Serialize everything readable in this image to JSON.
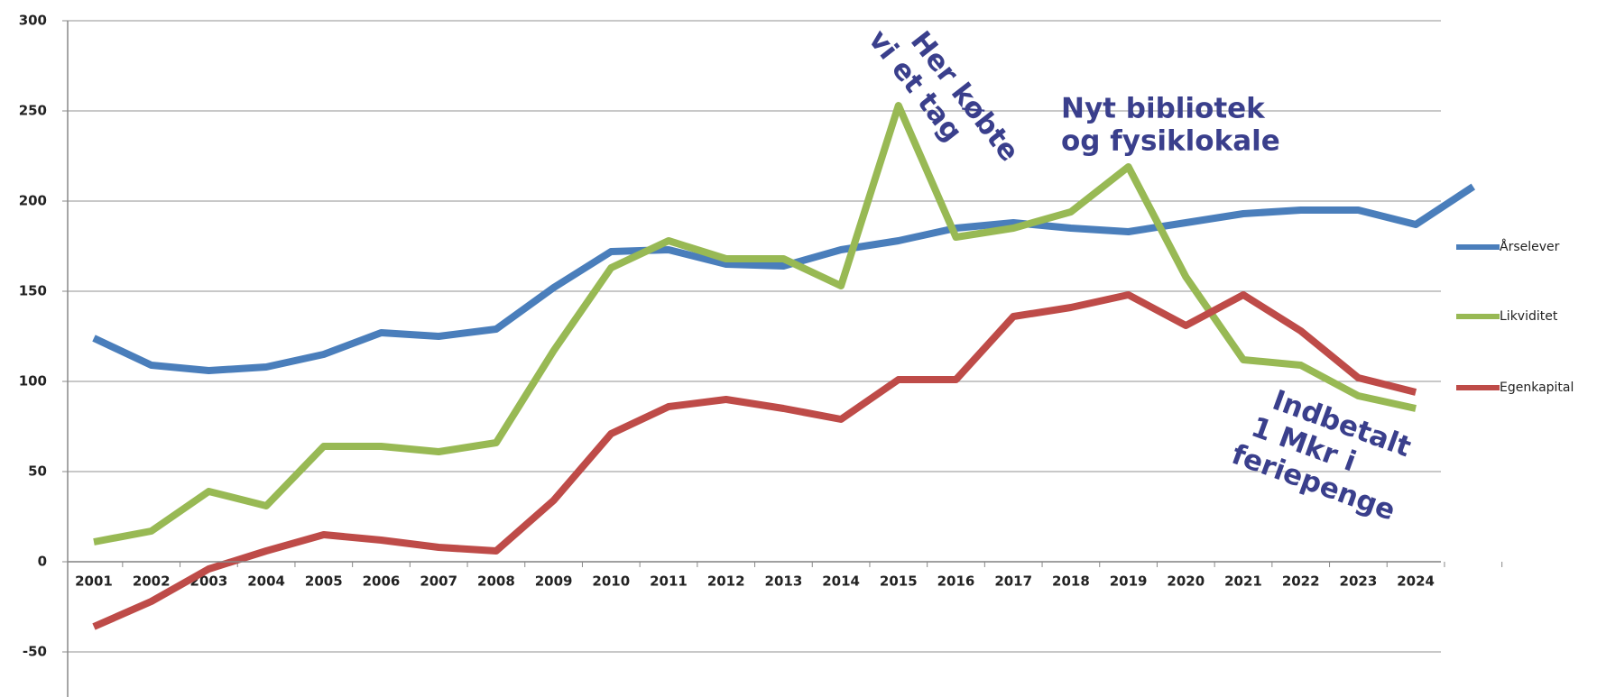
{
  "chart_data": {
    "type": "line",
    "categories": [
      "2001",
      "2002",
      "2003",
      "2004",
      "2005",
      "2006",
      "2007",
      "2008",
      "2009",
      "2010",
      "2011",
      "2012",
      "2013",
      "2014",
      "2015",
      "2016",
      "2017",
      "2018",
      "2019",
      "2020",
      "2021",
      "2022",
      "2023",
      "2024",
      null
    ],
    "series": [
      {
        "name": "Årselever",
        "color": "#4a7ebb",
        "values": [
          124,
          109,
          106,
          108,
          115,
          127,
          125,
          129,
          152,
          172,
          173,
          165,
          164,
          173,
          178,
          185,
          188,
          185,
          183,
          188,
          193,
          195,
          195,
          187,
          208
        ]
      },
      {
        "name": "Likviditet",
        "color": "#98b954",
        "values": [
          11,
          17,
          39,
          31,
          64,
          64,
          61,
          66,
          117,
          163,
          178,
          168,
          168,
          153,
          253,
          180,
          185,
          194,
          219,
          158,
          112,
          109,
          92,
          85,
          null
        ]
      },
      {
        "name": "Egenkapital",
        "color": "#be4b48",
        "values": [
          -36,
          -22,
          -4,
          6,
          15,
          12,
          8,
          6,
          34,
          71,
          86,
          90,
          85,
          79,
          101,
          101,
          136,
          141,
          148,
          131,
          148,
          128,
          102,
          94,
          null
        ]
      }
    ],
    "ylim": [
      -75,
      300
    ],
    "yticks": [
      -50,
      0,
      50,
      100,
      150,
      200,
      250,
      300
    ],
    "grid": true,
    "annotations": [
      [
        "Her købte",
        "vi et tag"
      ],
      [
        "Nyt bibliotek",
        "og fysiklokale"
      ],
      [
        "Indbetalt",
        "1 Mkr i",
        "feriepenge"
      ]
    ]
  }
}
